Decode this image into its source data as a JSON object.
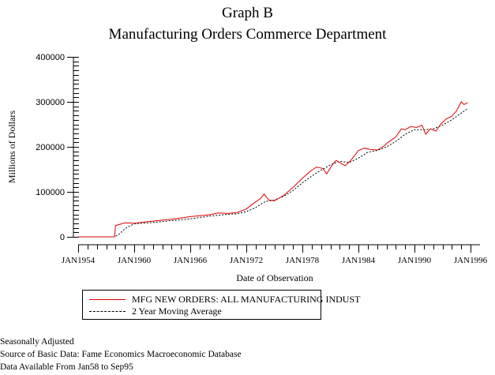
{
  "chart_data": {
    "type": "line",
    "title": "Graph B",
    "subtitle": "Manufacturing Orders Commerce Department",
    "xlabel": "Date of Observation",
    "ylabel": "Millions of Dollars",
    "xlim": [
      1954,
      1996
    ],
    "ylim": [
      0,
      400000
    ],
    "grid": false,
    "y_ticks": [
      0,
      100000,
      200000,
      300000,
      400000
    ],
    "y_tick_labels": [
      "0",
      "100000",
      "200000",
      "300000",
      "400000"
    ],
    "x_ticks": [
      1954,
      1960,
      1966,
      1972,
      1978,
      1984,
      1990,
      1996
    ],
    "x_tick_labels": [
      "JAN1954",
      "JAN1960",
      "JAN1966",
      "JAN1972",
      "JAN1978",
      "JAN1984",
      "JAN1990",
      "JAN1996"
    ],
    "legend_position": "bottom",
    "series": [
      {
        "name": "MFG NEW ORDERS: ALL MANUFACTURING INDUST",
        "color": "#e00000",
        "style": "solid",
        "x": [
          1954,
          1957.9,
          1958.0,
          1958.5,
          1959.0,
          1960.0,
          1961.0,
          1962.0,
          1963.0,
          1964.0,
          1965.0,
          1966.0,
          1967.0,
          1968.0,
          1969.0,
          1970.0,
          1971.0,
          1972.0,
          1972.8,
          1973.5,
          1973.9,
          1974.4,
          1975.0,
          1976.0,
          1977.0,
          1978.0,
          1978.8,
          1979.5,
          1980.2,
          1980.6,
          1981.2,
          1981.6,
          1982.0,
          1982.6,
          1983.2,
          1984.0,
          1984.6,
          1985.3,
          1986.0,
          1986.6,
          1987.3,
          1988.0,
          1988.6,
          1989.0,
          1989.6,
          1990.2,
          1990.8,
          1991.2,
          1991.7,
          1992.3,
          1992.8,
          1993.4,
          1994.0,
          1994.5,
          1995.0,
          1995.3,
          1995.7
        ],
        "values": [
          0,
          0,
          25000,
          28000,
          31000,
          30000,
          33000,
          35000,
          37000,
          39000,
          42000,
          45000,
          47000,
          49000,
          53000,
          52000,
          54000,
          62000,
          75000,
          85000,
          95000,
          82000,
          80000,
          92000,
          110000,
          130000,
          145000,
          155000,
          152000,
          140000,
          160000,
          170000,
          165000,
          158000,
          170000,
          192000,
          197000,
          194000,
          193000,
          200000,
          212000,
          222000,
          240000,
          238000,
          245000,
          243000,
          248000,
          228000,
          240000,
          235000,
          250000,
          262000,
          268000,
          280000,
          300000,
          294000,
          298000
        ]
      },
      {
        "name": "2 Year Moving Average",
        "color": "#000000",
        "style": "dashed",
        "x": [
          1954,
          1957.9,
          1958.5,
          1959.0,
          1959.6,
          1960.0,
          1962.0,
          1964.0,
          1966.0,
          1968.0,
          1970.0,
          1971.0,
          1972.0,
          1973.0,
          1974.0,
          1975.0,
          1976.0,
          1977.0,
          1978.0,
          1979.0,
          1980.0,
          1981.0,
          1982.0,
          1983.0,
          1984.0,
          1985.0,
          1986.0,
          1987.0,
          1988.0,
          1989.0,
          1990.0,
          1991.0,
          1992.0,
          1993.0,
          1994.0,
          1995.0,
          1995.7
        ],
        "values": [
          0,
          0,
          8000,
          18000,
          25000,
          29000,
          32000,
          36000,
          40000,
          46000,
          50000,
          51000,
          56000,
          65000,
          78000,
          82000,
          90000,
          103000,
          120000,
          135000,
          148000,
          160000,
          168000,
          165000,
          175000,
          188000,
          192000,
          200000,
          212000,
          228000,
          238000,
          238000,
          240000,
          248000,
          260000,
          275000,
          285000
        ]
      }
    ]
  },
  "legend": {
    "items": [
      {
        "label": "MFG NEW ORDERS: ALL MANUFACTURING INDUST",
        "color": "#e00000",
        "style": "solid"
      },
      {
        "label": "2 Year Moving Average",
        "color": "#000000",
        "style": "dashed"
      }
    ]
  },
  "footnotes": [
    "Seasonally Adjusted",
    "Source of Basic Data: Fame Economics Macroeconomic Database",
    "Data Available From Jan58 to Sep95"
  ]
}
